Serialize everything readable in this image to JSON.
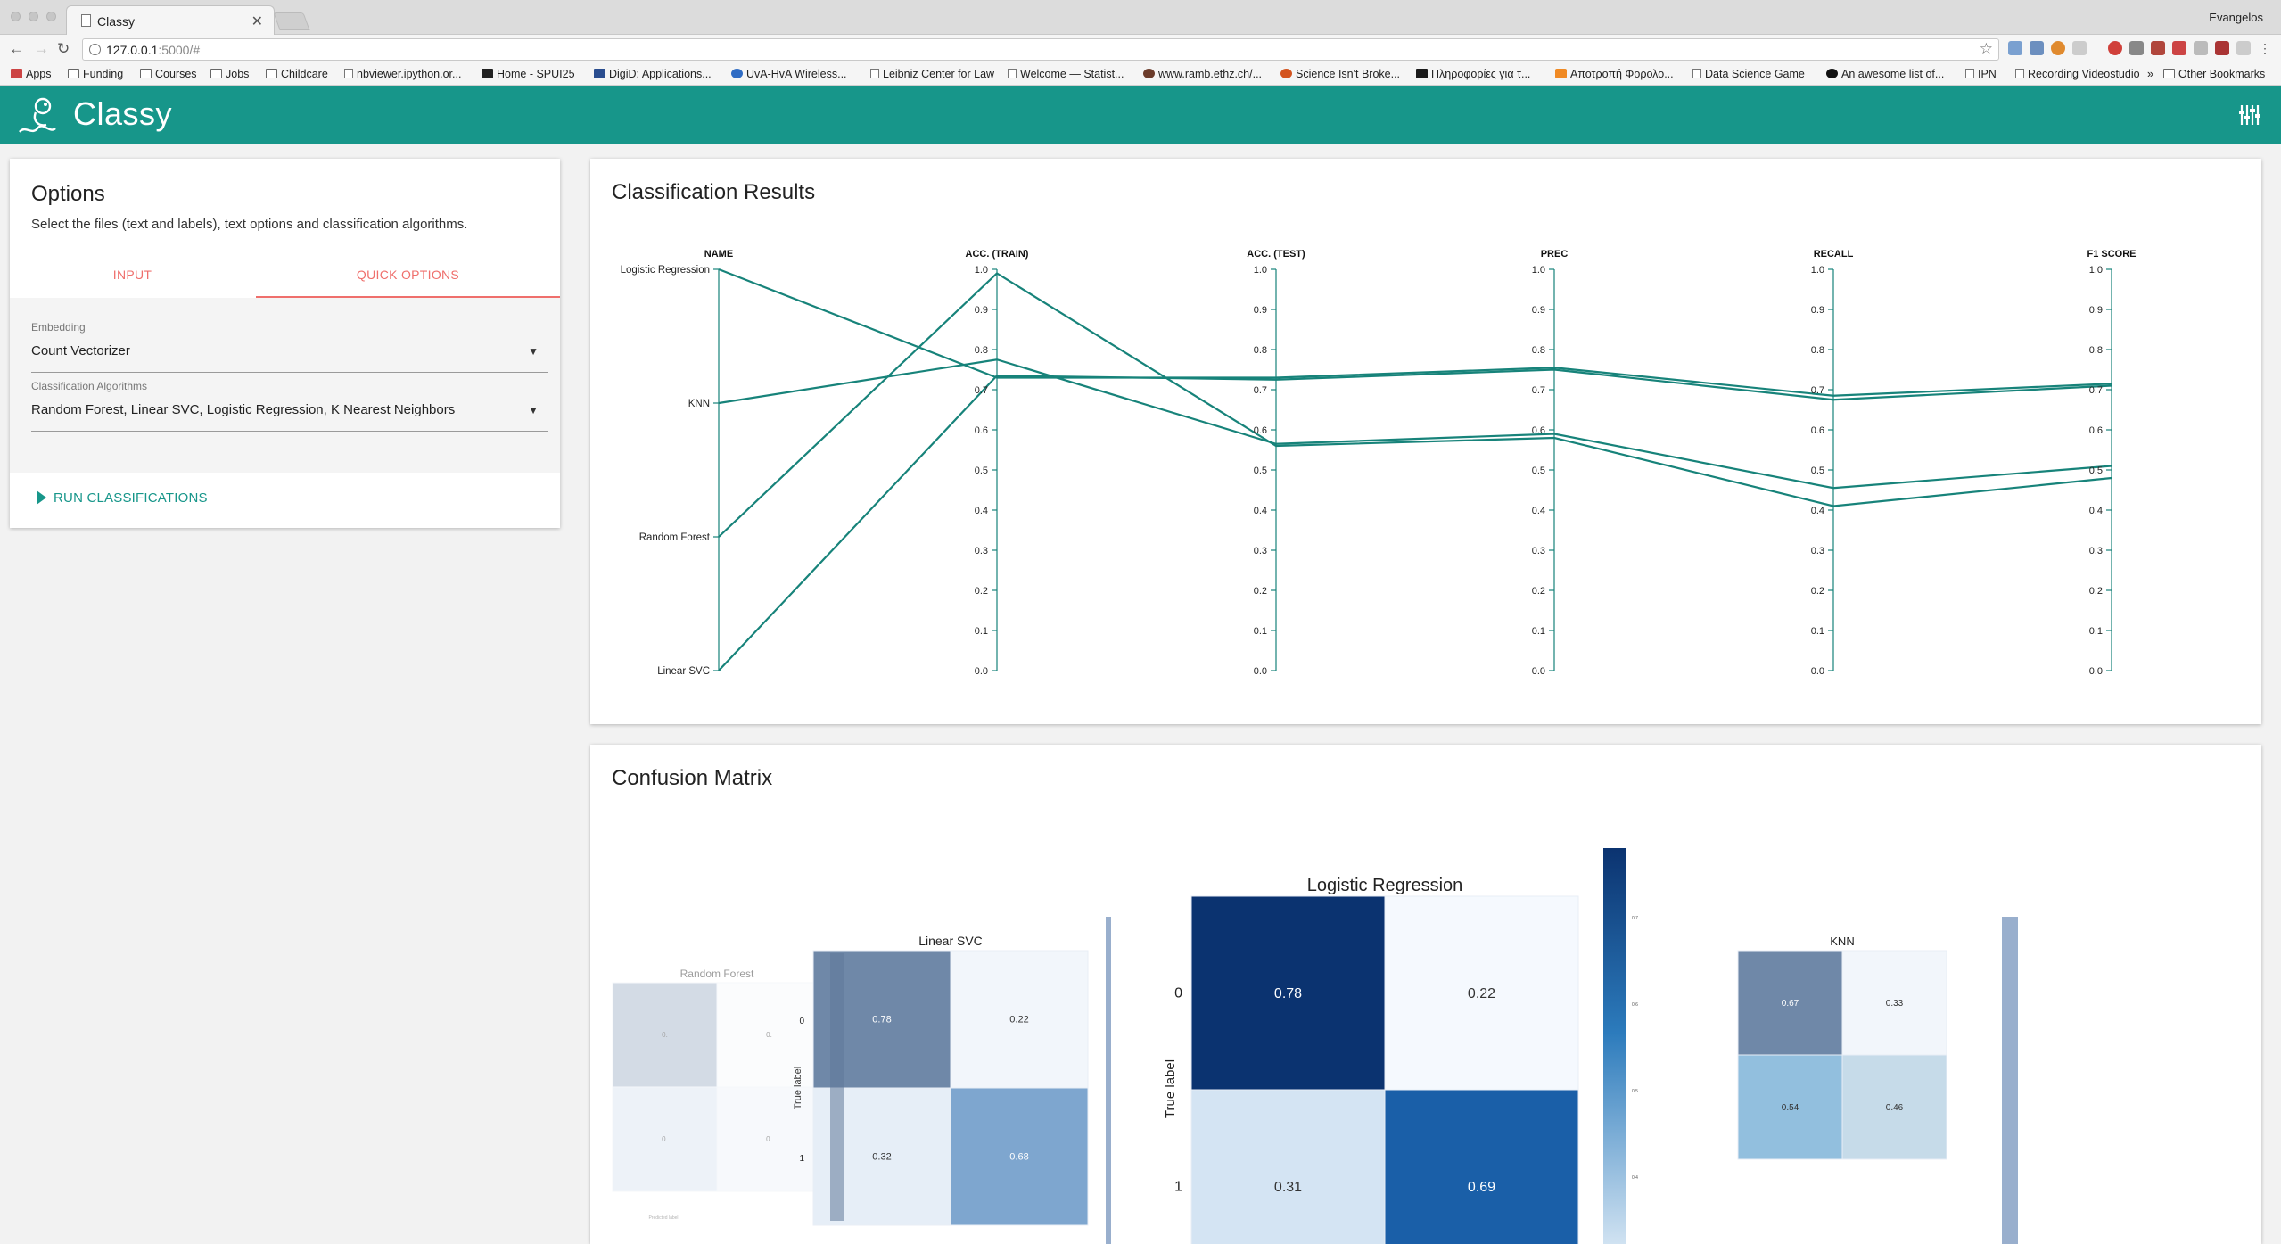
{
  "browser": {
    "tab_title": "Classy",
    "profile": "Evangelos",
    "url_host": "127.0.0.1",
    "url_rest": ":5000/#",
    "bookmarks": [
      {
        "icon": "apps",
        "label": "Apps"
      },
      {
        "icon": "folder",
        "label": "Funding"
      },
      {
        "icon": "folder",
        "label": "Courses"
      },
      {
        "icon": "folder",
        "label": "Jobs"
      },
      {
        "icon": "folder",
        "label": "Childcare"
      },
      {
        "icon": "page",
        "label": "nbviewer.ipython.or..."
      },
      {
        "icon": "dot",
        "label": "Home - SPUI25"
      },
      {
        "icon": "dot",
        "label": "DigiD: Applications..."
      },
      {
        "icon": "dot",
        "label": "UvA-HvA Wireless..."
      },
      {
        "icon": "page",
        "label": "Leibniz Center for Law"
      },
      {
        "icon": "page",
        "label": "Welcome — Statist..."
      },
      {
        "icon": "dot",
        "label": "www.ramb.ethz.ch/..."
      },
      {
        "icon": "dot",
        "label": "Science Isn't Broke..."
      },
      {
        "icon": "dot",
        "label": "Πληροφορίες για τ..."
      },
      {
        "icon": "dot",
        "label": "Αποτροπή Φορολο..."
      },
      {
        "icon": "page",
        "label": "Data Science Game"
      },
      {
        "icon": "dot",
        "label": "An awesome list of..."
      },
      {
        "icon": "page",
        "label": "IPN"
      },
      {
        "icon": "page",
        "label": "Recording Videostudio"
      }
    ],
    "overflow": "»",
    "other_bookmarks": "Other Bookmarks"
  },
  "app": {
    "title": "Classy"
  },
  "options": {
    "title": "Options",
    "description": "Select the files (text and labels), text options and classification algorithms.",
    "tab_input": "INPUT",
    "tab_quick": "QUICK OPTIONS",
    "embedding_label": "Embedding",
    "embedding_value": "Count Vectorizer",
    "algorithms_label": "Classification Algorithms",
    "algorithms_value": "Random Forest, Linear SVC, Logistic Regression, K Nearest Neighbors",
    "run_label": "RUN CLASSIFICATIONS"
  },
  "results": {
    "title": "Classification Results",
    "chart_data": {
      "type": "parallel-coordinates",
      "dimensions": [
        "NAME",
        "ACC. (TRAIN)",
        "ACC. (TEST)",
        "PREC",
        "RECALL",
        "F1 SCORE"
      ],
      "name_order": [
        "Logistic Regression",
        "KNN",
        "Random Forest",
        "Linear SVC"
      ],
      "ticks": [
        "0.0",
        "0.1",
        "0.2",
        "0.3",
        "0.4",
        "0.5",
        "0.6",
        "0.7",
        "0.8",
        "0.9",
        "1.0"
      ],
      "ylim": [
        0,
        1
      ],
      "line_color": "#17837a",
      "series": [
        {
          "name": "Logistic Regression",
          "values": [
            0.73,
            0.73,
            0.755,
            0.685,
            0.715
          ]
        },
        {
          "name": "KNN",
          "values": [
            0.775,
            0.565,
            0.59,
            0.455,
            0.51
          ]
        },
        {
          "name": "Random Forest",
          "values": [
            0.99,
            0.56,
            0.58,
            0.41,
            0.48
          ]
        },
        {
          "name": "Linear SVC",
          "values": [
            0.735,
            0.725,
            0.75,
            0.675,
            0.71
          ]
        }
      ]
    }
  },
  "confusion": {
    "title": "Confusion Matrix",
    "true_label": "True label",
    "predicted_label": "Predicted label",
    "matrices": [
      {
        "name": "Random Forest",
        "values": [
          [
            "0.",
            "0."
          ],
          [
            "0.",
            "0."
          ]
        ]
      },
      {
        "name": "Linear SVC",
        "values": [
          [
            "0.78",
            "0.22"
          ],
          [
            "0.32",
            "0.68"
          ]
        ],
        "row_ticks": [
          "0",
          "1"
        ]
      },
      {
        "name": "Logistic Regression",
        "values": [
          [
            "0.78",
            "0.22"
          ],
          [
            "0.31",
            "0.69"
          ]
        ],
        "row_ticks": [
          "0",
          "1"
        ]
      },
      {
        "name": "KNN",
        "values": [
          [
            "0.67",
            "0.33"
          ],
          [
            "0.54",
            "0.46"
          ]
        ]
      }
    ],
    "colorbar_ticks": [
      "0.7",
      "0.6",
      "0.5",
      "0.4"
    ]
  }
}
